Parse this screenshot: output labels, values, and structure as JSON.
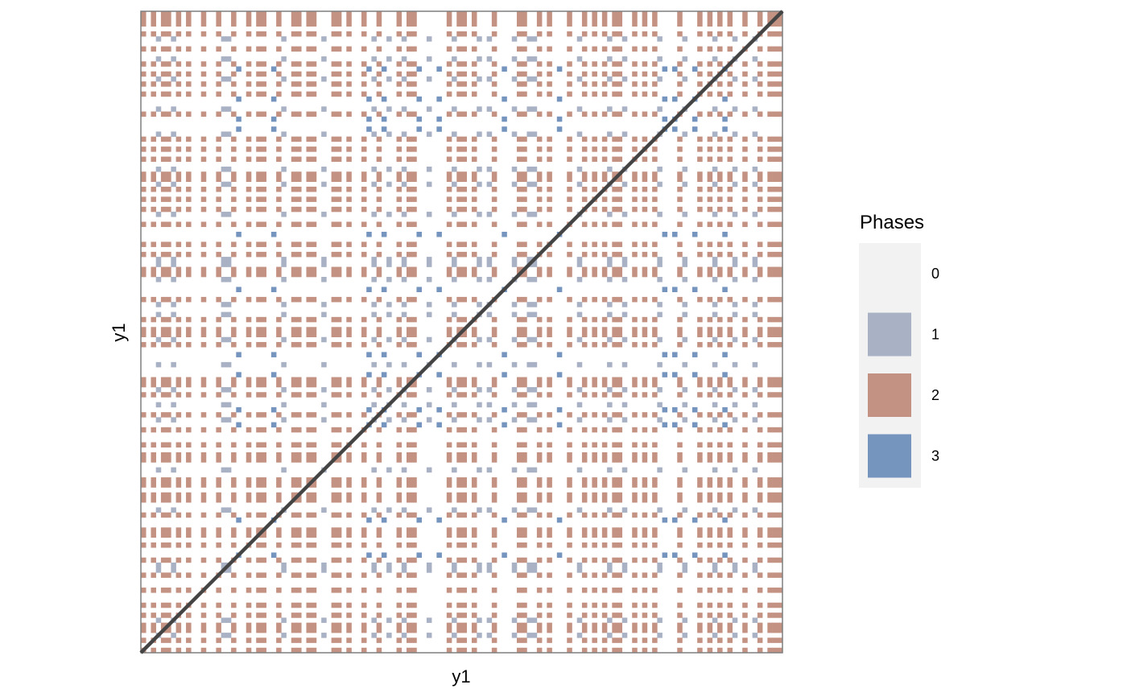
{
  "chart_data": {
    "type": "heatmap",
    "title": "",
    "xlabel": "y1",
    "ylabel": "y1",
    "n": 128,
    "levels": [
      "0",
      "1",
      "2",
      "3"
    ],
    "colors": {
      "0": "#ffffff",
      "1": "#a9b1c4",
      "2": "#c49282",
      "3": "#7594be"
    },
    "legend": {
      "title": "Phases",
      "position": "right",
      "background": "#f2f2f2"
    },
    "diagonal": {
      "from": [
        0,
        0
      ],
      "to": [
        128,
        128
      ],
      "color": "#444444"
    },
    "grid": false,
    "cells": "128×128 recurrence grid; each cell value in {0,1,2,3} determined by the phase of row index and column index (2 = both phase A, 3 = both phase B, 1 = both phase C, 0 = phases differ)",
    "phase_sequence_alphabet": {
      "A": 2,
      "B": 3,
      "C": 1,
      "0": 0
    }
  }
}
